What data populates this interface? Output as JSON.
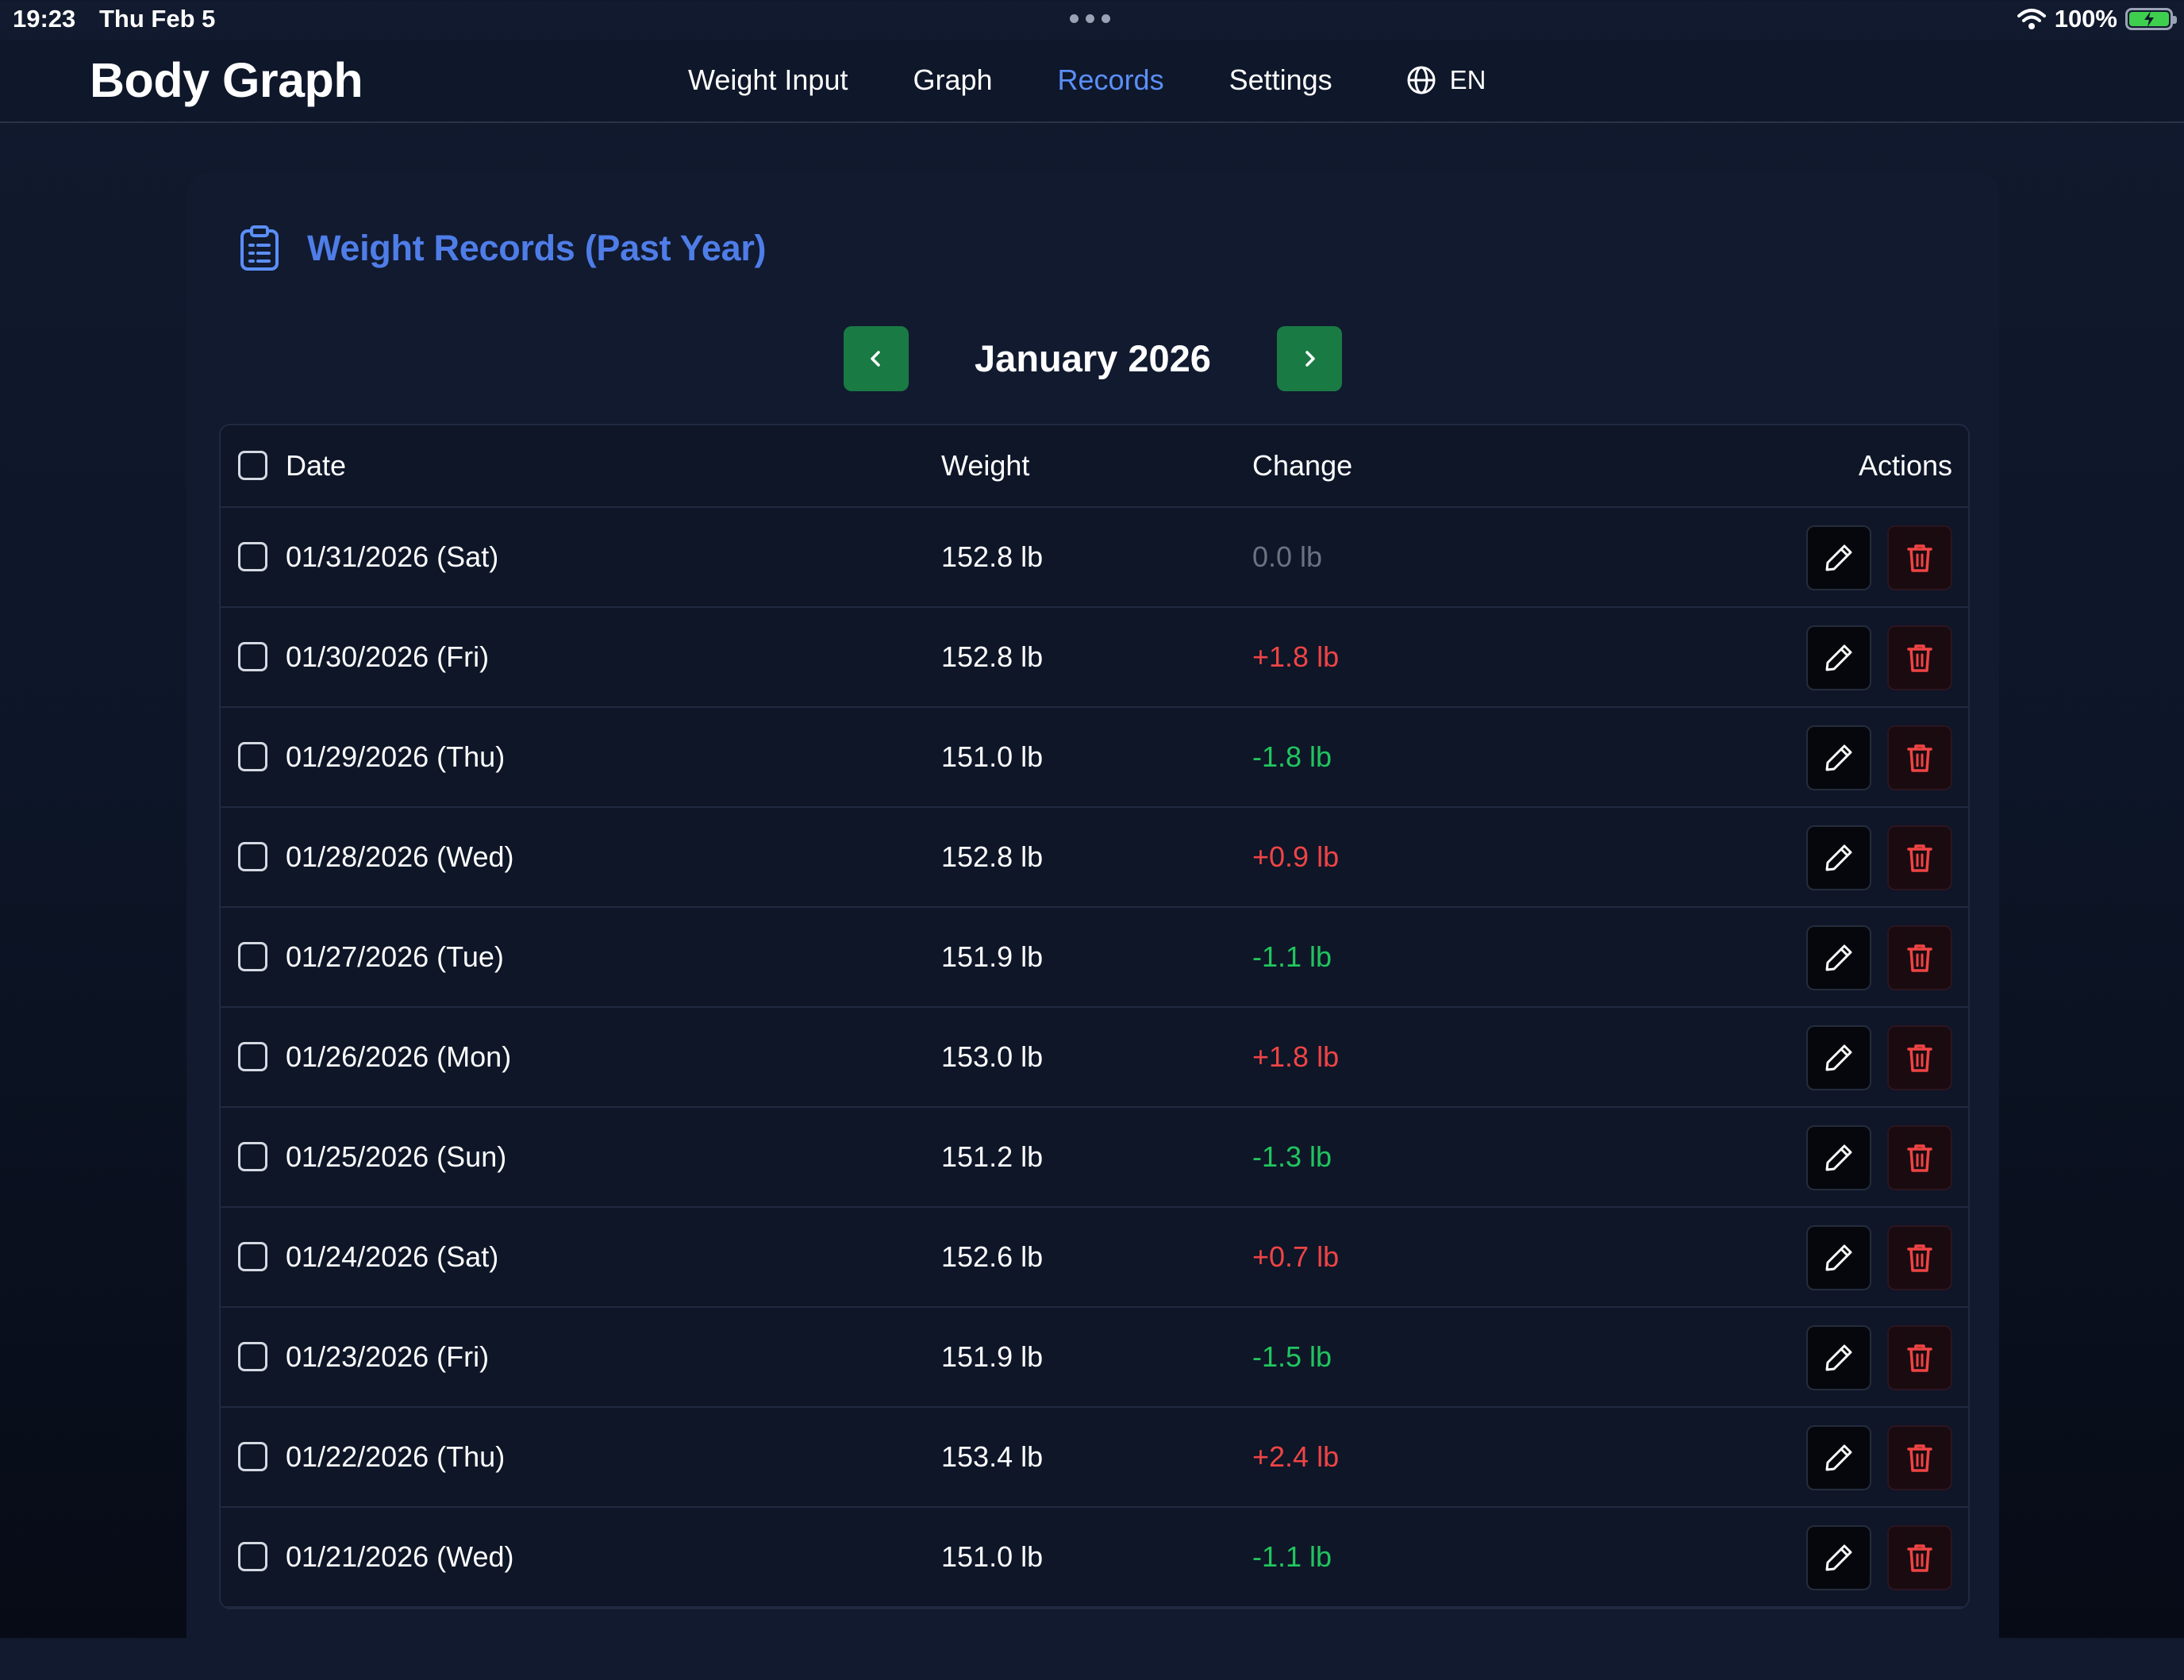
{
  "status_bar": {
    "time": "19:23",
    "date": "Thu Feb 5",
    "battery": "100%"
  },
  "app": {
    "title": "Body Graph"
  },
  "nav": {
    "items": [
      {
        "label": "Weight Input",
        "active": false
      },
      {
        "label": "Graph",
        "active": false
      },
      {
        "label": "Records",
        "active": true
      },
      {
        "label": "Settings",
        "active": false
      }
    ],
    "language": "EN"
  },
  "records": {
    "title": "Weight Records (Past Year)",
    "month": "January 2026",
    "columns": {
      "date": "Date",
      "weight": "Weight",
      "change": "Change",
      "actions": "Actions"
    },
    "rows": [
      {
        "date": "01/31/2026 (Sat)",
        "weight": "152.8 lb",
        "change": "0.0 lb",
        "trend": "zero"
      },
      {
        "date": "01/30/2026 (Fri)",
        "weight": "152.8 lb",
        "change": "+1.8 lb",
        "trend": "up"
      },
      {
        "date": "01/29/2026 (Thu)",
        "weight": "151.0 lb",
        "change": "-1.8 lb",
        "trend": "down"
      },
      {
        "date": "01/28/2026 (Wed)",
        "weight": "152.8 lb",
        "change": "+0.9 lb",
        "trend": "up"
      },
      {
        "date": "01/27/2026 (Tue)",
        "weight": "151.9 lb",
        "change": "-1.1 lb",
        "trend": "down"
      },
      {
        "date": "01/26/2026 (Mon)",
        "weight": "153.0 lb",
        "change": "+1.8 lb",
        "trend": "up"
      },
      {
        "date": "01/25/2026 (Sun)",
        "weight": "151.2 lb",
        "change": "-1.3 lb",
        "trend": "down"
      },
      {
        "date": "01/24/2026 (Sat)",
        "weight": "152.6 lb",
        "change": "+0.7 lb",
        "trend": "up"
      },
      {
        "date": "01/23/2026 (Fri)",
        "weight": "151.9 lb",
        "change": "-1.5 lb",
        "trend": "down"
      },
      {
        "date": "01/22/2026 (Thu)",
        "weight": "153.4 lb",
        "change": "+2.4 lb",
        "trend": "up"
      },
      {
        "date": "01/21/2026 (Wed)",
        "weight": "151.0 lb",
        "change": "-1.1 lb",
        "trend": "down"
      }
    ]
  },
  "colors": {
    "accent": "#5b8ff7",
    "title": "#4f7de8",
    "month_button": "#1a7a44",
    "increase": "#ef4444",
    "decrease": "#22c55e",
    "no_change": "#6b7280",
    "delete_icon": "#ef4444"
  },
  "icons": {
    "records_title": "clipboard-list-icon",
    "language": "globe-icon",
    "prev": "chevron-left-icon",
    "next": "chevron-right-icon",
    "edit": "pencil-icon",
    "delete": "trash-icon"
  }
}
